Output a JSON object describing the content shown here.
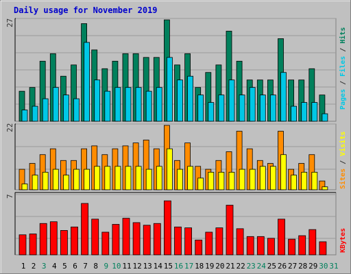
{
  "title": "Daily usage for November 2019",
  "colors": {
    "background": "#c0c0c0",
    "panel": "#c0c0c0",
    "gridline": "#9a9a9a",
    "title": "#0000cc",
    "axis_label": "#333333",
    "hits": "#00805c",
    "files": "#00c8e6",
    "pages": "#00c8e6",
    "visits": "#ffff00",
    "sites": "#ff8c00",
    "kbytes": "#ff0000",
    "weekday": "#000000",
    "weekend": "#00805c"
  },
  "chart_data": [
    {
      "type": "bar",
      "name": "hits-files-pages",
      "ymax_label": "27",
      "ylim": [
        0,
        27
      ],
      "legend": [
        "Pages",
        "Files",
        "Hits"
      ],
      "categories": [
        "1",
        "2",
        "3",
        "4",
        "5",
        "6",
        "7",
        "8",
        "9",
        "10",
        "11",
        "12",
        "13",
        "14",
        "15",
        "16",
        "17",
        "18",
        "19",
        "20",
        "21",
        "22",
        "23",
        "24",
        "25",
        "26",
        "27",
        "28",
        "29",
        "30",
        "31"
      ],
      "series": [
        {
          "name": "Hits",
          "values": [
            8,
            9,
            16,
            18,
            12,
            15,
            26,
            19,
            14,
            16,
            18,
            18,
            17,
            17,
            27,
            15,
            18,
            9,
            13,
            15,
            24,
            16,
            11,
            11,
            11,
            22,
            11,
            11,
            14,
            7,
            0
          ]
        },
        {
          "name": "Files",
          "values": [
            3,
            4,
            6,
            9,
            7,
            6,
            21,
            11,
            8,
            9,
            9,
            9,
            8,
            9,
            17,
            11,
            12,
            7,
            5,
            7,
            11,
            7,
            9,
            7,
            7,
            13,
            4,
            5,
            5,
            2,
            0
          ]
        }
      ]
    },
    {
      "type": "bar",
      "name": "visits-sites",
      "ymax_label": "22",
      "ylim": [
        0,
        22
      ],
      "legend": [
        "Sites",
        "Visits"
      ],
      "categories": [
        "1",
        "2",
        "3",
        "4",
        "5",
        "6",
        "7",
        "8",
        "9",
        "10",
        "11",
        "12",
        "13",
        "14",
        "15",
        "16",
        "17",
        "18",
        "19",
        "20",
        "21",
        "22",
        "23",
        "24",
        "25",
        "26",
        "27",
        "28",
        "29",
        "30",
        "31"
      ],
      "series": [
        {
          "name": "Sites",
          "values": [
            7,
            9,
            12,
            14,
            10,
            10,
            14,
            15,
            12,
            14,
            15,
            16,
            17,
            14,
            22,
            10,
            16,
            8,
            7,
            10,
            13,
            20,
            14,
            10,
            9,
            20,
            7,
            9,
            12,
            3,
            0
          ]
        },
        {
          "name": "Visits",
          "values": [
            2,
            5,
            6,
            7,
            5,
            7,
            7,
            8,
            8,
            8,
            8,
            8,
            7,
            8,
            14,
            7,
            8,
            4,
            6,
            6,
            6,
            7,
            7,
            8,
            8,
            12,
            5,
            6,
            6,
            1,
            0
          ]
        }
      ]
    },
    {
      "type": "bar",
      "name": "kbytes",
      "ymax_label": "7",
      "ylim": [
        0,
        7
      ],
      "legend": [
        "KBytes"
      ],
      "categories": [
        "1",
        "2",
        "3",
        "4",
        "5",
        "6",
        "7",
        "8",
        "9",
        "10",
        "11",
        "12",
        "13",
        "14",
        "15",
        "16",
        "17",
        "18",
        "19",
        "20",
        "21",
        "22",
        "23",
        "24",
        "25",
        "26",
        "27",
        "28",
        "29",
        "30",
        "31"
      ],
      "series": [
        {
          "name": "KBytes",
          "values": [
            2.3,
            2.4,
            3.6,
            3.8,
            2.8,
            3.2,
            5.9,
            4.1,
            2.6,
            3.5,
            4.2,
            3.7,
            3.4,
            3.6,
            6.2,
            3.2,
            3.1,
            1.7,
            2.6,
            3.1,
            5.7,
            3.0,
            2.1,
            2.1,
            1.9,
            4.1,
            1.8,
            2.2,
            2.9,
            1.5,
            0
          ]
        }
      ]
    }
  ],
  "weekend_days": [
    3,
    9,
    10,
    16,
    17,
    23,
    24,
    30,
    31
  ]
}
